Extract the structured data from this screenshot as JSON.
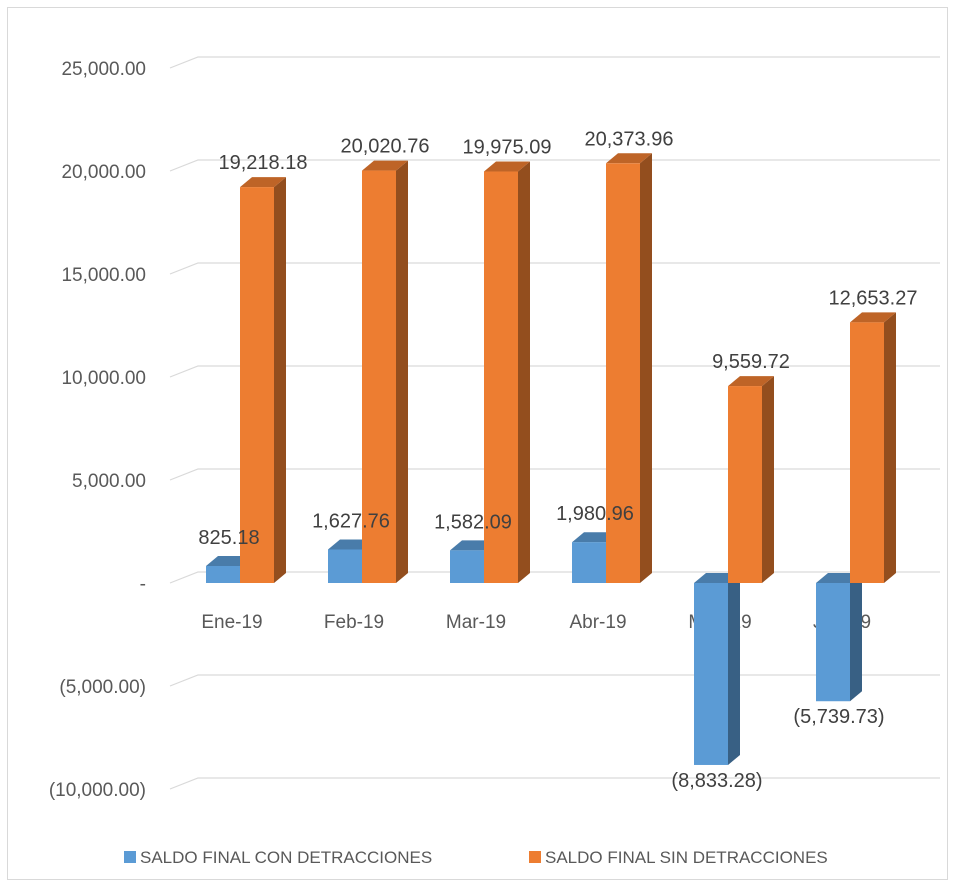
{
  "chart_data": {
    "type": "bar",
    "categories": [
      "Ene-19",
      "Feb-19",
      "Mar-19",
      "Abr-19",
      "May-19",
      "Jun-19"
    ],
    "series": [
      {
        "name": "SALDO FINAL CON DETRACCIONES",
        "color": "#5b9bd5",
        "values": [
          825.18,
          1627.76,
          1582.09,
          1980.96,
          -8833.28,
          -5739.73
        ],
        "labels": [
          "825.18",
          "1,627.76",
          "1,582.09",
          "1,980.96",
          "(8,833.28)",
          "(5,739.73)"
        ]
      },
      {
        "name": "SALDO FINAL SIN DETRACCIONES",
        "color": "#ed7d31",
        "values": [
          19218.18,
          20020.76,
          19975.09,
          20373.96,
          9559.72,
          12653.27
        ],
        "labels": [
          "19,218.18",
          "20,020.76",
          "19,975.09",
          "20,373.96",
          "9,559.72",
          "12,653.27"
        ]
      }
    ],
    "y_ticks": [
      {
        "value": 25000,
        "label": "25,000.00"
      },
      {
        "value": 20000,
        "label": "20,000.00"
      },
      {
        "value": 15000,
        "label": "15,000.00"
      },
      {
        "value": 10000,
        "label": "10,000.00"
      },
      {
        "value": 5000,
        "label": "5,000.00"
      },
      {
        "value": 0,
        "label": "-"
      },
      {
        "value": -5000,
        "label": "(5,000.00)"
      },
      {
        "value": -10000,
        "label": "(10,000.00)"
      }
    ],
    "ylim": [
      -10000,
      25000
    ],
    "grid": true,
    "legend_position": "bottom",
    "three_d": true
  }
}
